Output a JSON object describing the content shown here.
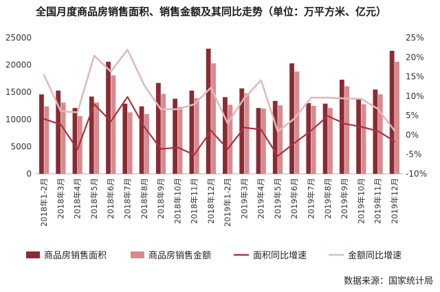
{
  "chart_data": {
    "type": "bar",
    "title": "全国月度商品房销售面积、销售金额及其同比走势（单位：万平方米、亿元）",
    "categories": [
      "2018年1-2月",
      "2018年3月",
      "2018年4月",
      "2018年5月",
      "2018年6月",
      "2018年7月",
      "2018年8月",
      "2018年9月",
      "2018年10月",
      "2018年11月",
      "2018年12月",
      "2019年1-2月",
      "2019年3月",
      "2019年4月",
      "2019年5月",
      "2019年6月",
      "2019年7月",
      "2019年8月",
      "2019年9月",
      "2019年10月",
      "2019年11月",
      "2019年12月"
    ],
    "series": [
      {
        "name": "商品房销售面积",
        "kind": "bar",
        "axis": "left",
        "color": "#8b2a33",
        "values": [
          14600,
          15300,
          12100,
          14200,
          20600,
          12900,
          12400,
          16700,
          13800,
          15300,
          23000,
          14100,
          15700,
          12100,
          13400,
          20300,
          13000,
          12900,
          17300,
          13800,
          15500,
          22600
        ]
      },
      {
        "name": "商品房销售金额",
        "kind": "bar",
        "axis": "left",
        "color": "#d98a8e",
        "values": [
          12400,
          13100,
          10600,
          13100,
          18100,
          11300,
          11000,
          14700,
          12300,
          13900,
          20300,
          12700,
          14800,
          12000,
          12600,
          18800,
          12500,
          12100,
          16100,
          12800,
          14600,
          20600
        ]
      },
      {
        "name": "面积同比增速",
        "kind": "line",
        "axis": "right",
        "color": "#a8343b",
        "values": [
          4.1,
          2.7,
          -3.7,
          7.9,
          3.5,
          9.8,
          2.1,
          -3.6,
          -3.2,
          -5.1,
          1.1,
          -3.6,
          1.9,
          1.4,
          -5.4,
          -2.1,
          1.1,
          4.9,
          2.9,
          2.1,
          1.0,
          -1.6
        ]
      },
      {
        "name": "金额同比增速",
        "kind": "line",
        "axis": "right",
        "color": "#e2b9bc",
        "values": [
          15.4,
          6.1,
          5.8,
          20.4,
          16.3,
          21.9,
          12.8,
          6.6,
          6.6,
          7.9,
          12.2,
          3.0,
          9.5,
          14.1,
          0.9,
          4.2,
          9.6,
          9.6,
          9.4,
          9.3,
          6.7,
          1.1
        ]
      }
    ],
    "y_left": {
      "min": 0,
      "max": 25000,
      "ticks": [
        "0",
        "5000",
        "10000",
        "15000",
        "20000",
        "25000"
      ]
    },
    "y_right": {
      "min": -10,
      "max": 25,
      "ticks": [
        "-10%",
        "-5%",
        "0%",
        "5%",
        "10%",
        "15%",
        "20%",
        "25%"
      ]
    },
    "grid": false,
    "legend_position": "bottom",
    "source": "数据来源：国家统计局"
  }
}
